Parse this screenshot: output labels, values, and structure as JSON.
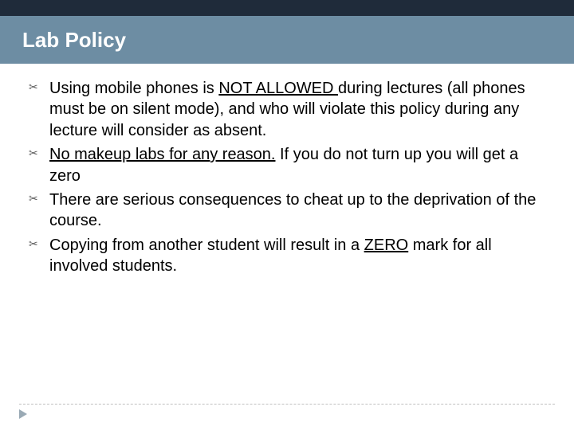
{
  "colors": {
    "top_band": "#1f2b3a",
    "title_band": "#6d8da3",
    "title_text": "#ffffff",
    "body_text": "#000000",
    "bullet_glyph": "#5a5a5a",
    "dashed_line": "#bfbfbf",
    "footer_marker": "#9aaab5",
    "background": "#ffffff"
  },
  "typography": {
    "title_fontsize_pt": 20,
    "title_weight": "bold",
    "body_fontsize_pt": 15,
    "larger_body_fontsize_pt": 17,
    "font_family": "Arial"
  },
  "title": "Lab Policy",
  "bullets": [
    {
      "pre": "Using mobile phones is ",
      "underline": "NOT ALLOWED ",
      "post": "during lectures (all phones must be on silent mode), and who will violate this policy during any lecture will consider as absent.",
      "size": "normal"
    },
    {
      "pre": "",
      "underline": "No makeup labs for any reason.",
      "post": " If you do not turn up you will get a zero",
      "size": "larger"
    },
    {
      "pre": "There are serious consequences to cheat up to the deprivation of the course.",
      "underline": "",
      "post": "",
      "size": "larger"
    },
    {
      "pre": "Copying from another student will result in a ",
      "underline": "ZERO",
      "post": " mark for all involved students.",
      "size": "larger"
    }
  ]
}
